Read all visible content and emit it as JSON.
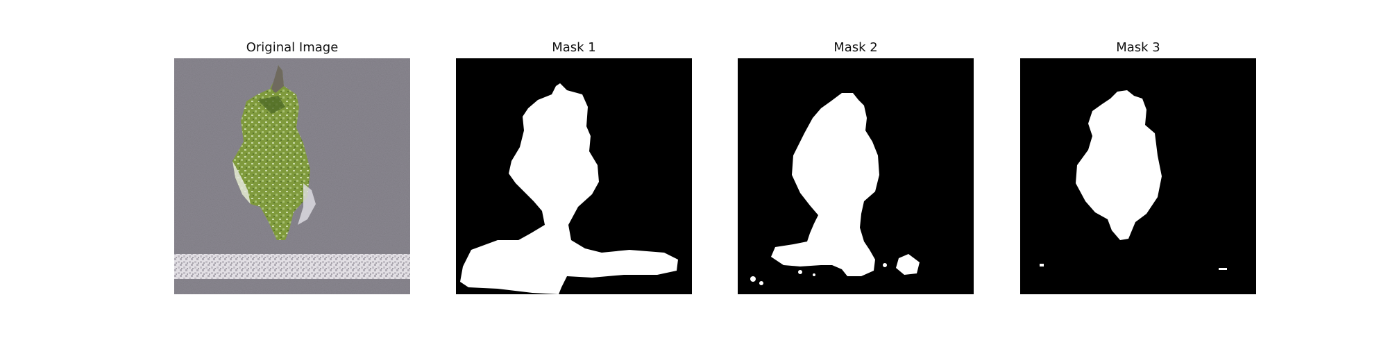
{
  "panels": [
    {
      "title": "Original Image"
    },
    {
      "title": "Mask 1"
    },
    {
      "title": "Mask 2"
    },
    {
      "title": "Mask 3"
    }
  ],
  "colors": {
    "background_gray": "#8a8790",
    "leaf_green": "#7f9a3c",
    "leaf_dark": "#5d7a2c",
    "mask_black": "#000000",
    "mask_white": "#ffffff"
  }
}
